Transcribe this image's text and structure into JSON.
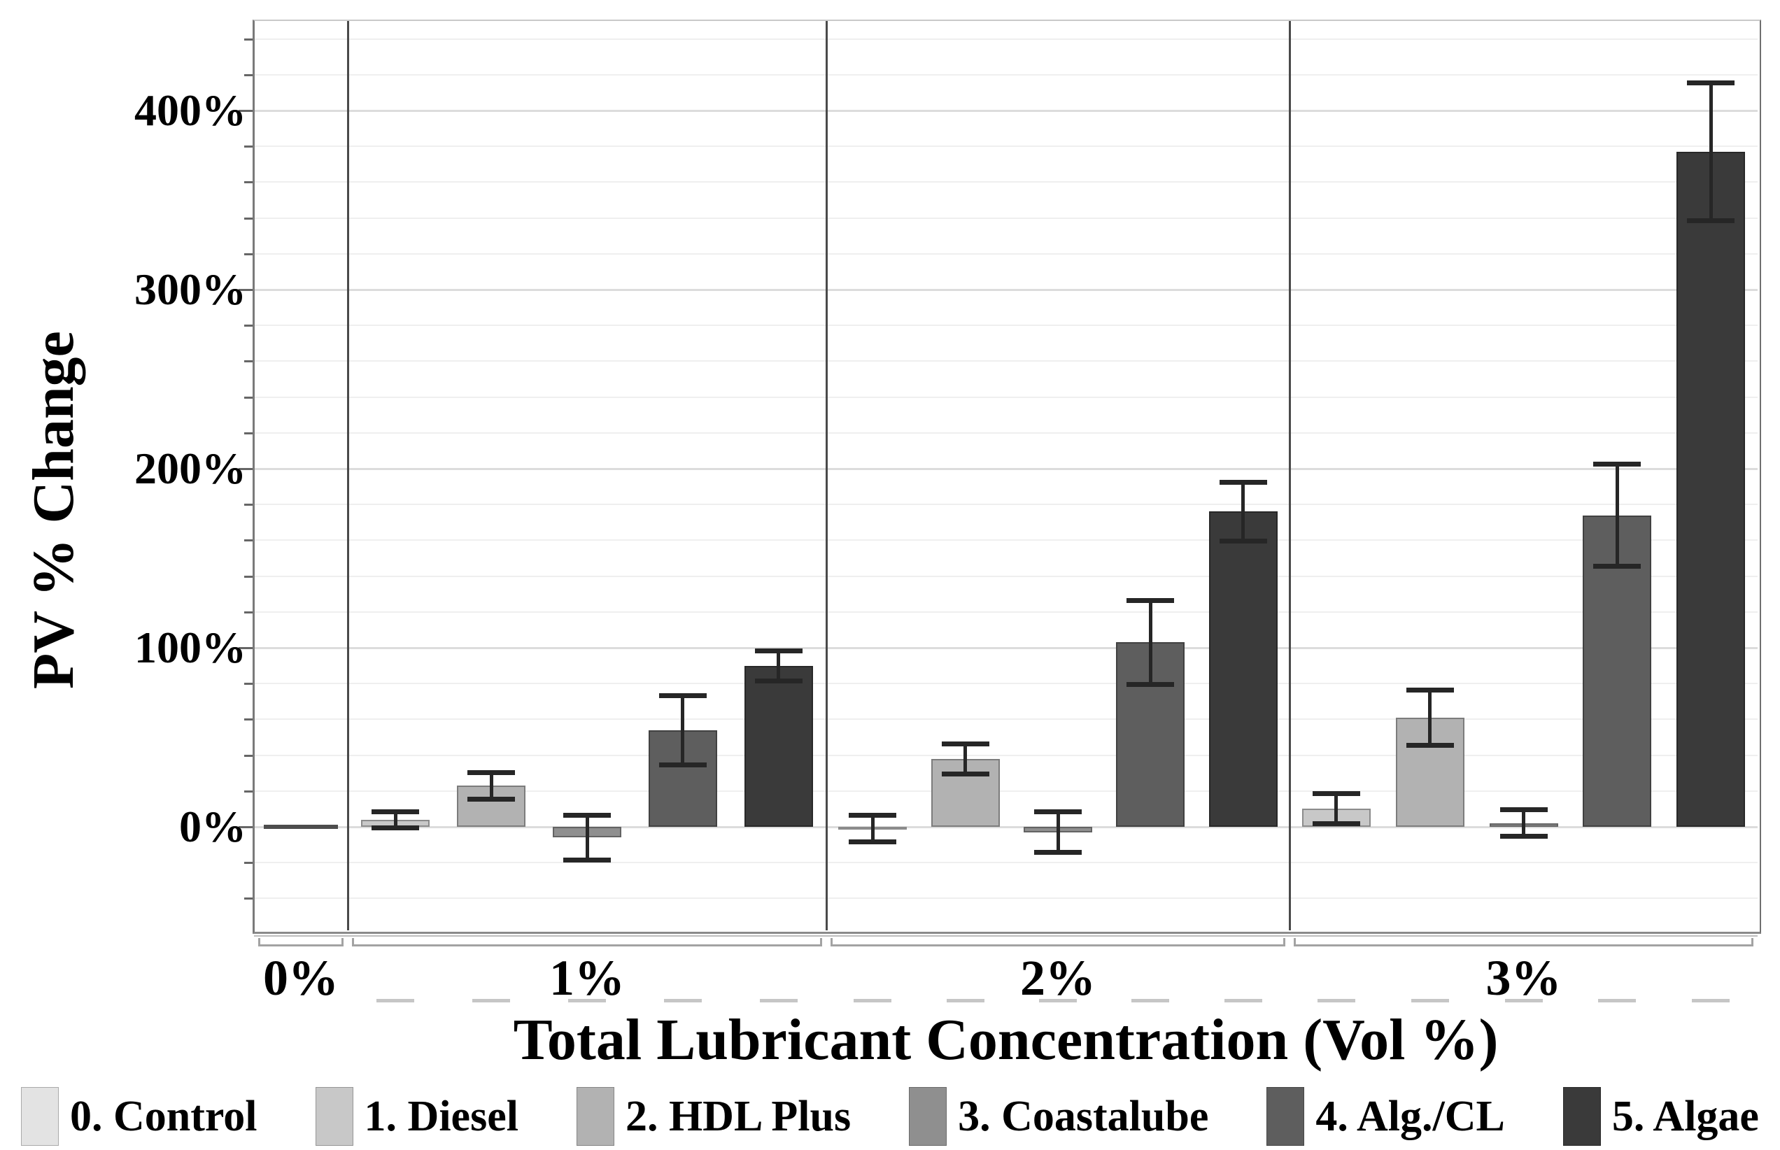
{
  "y_axis": {
    "title": "PV % Change",
    "tick_labels": [
      "400%",
      "300%",
      "200%",
      "100%",
      "0%"
    ],
    "tick_values": [
      400,
      300,
      200,
      100,
      0
    ],
    "minor_step_pct": 20,
    "range_pct": [
      -58,
      450
    ]
  },
  "x_axis": {
    "title": "Total Lubricant Concentration (Vol %)",
    "tick_labels": [
      "0%",
      "1%",
      "2%",
      "3%"
    ]
  },
  "legend": [
    {
      "label": "0. Control",
      "color": "#e3e3e3"
    },
    {
      "label": "1. Diesel",
      "color": "#c8c8c8"
    },
    {
      "label": "2. HDL Plus",
      "color": "#b2b2b2"
    },
    {
      "label": "3. Coastalube",
      "color": "#8f8f8f"
    },
    {
      "label": "4. Alg./CL",
      "color": "#5e5e5e"
    },
    {
      "label": "5. Algae",
      "color": "#3a3a3a"
    }
  ],
  "chart_data": {
    "type": "bar",
    "title": "",
    "xlabel": "Total Lubricant Concentration (Vol %)",
    "ylabel": "PV % Change",
    "categories": [
      "0%",
      "1%",
      "2%",
      "3%"
    ],
    "ylim": [
      -60,
      450
    ],
    "grid": "horizontal; minor every 20%, major every 100%",
    "legend_position": "bottom",
    "units": "percent change",
    "series": [
      {
        "name": "0. Control",
        "color": "#e3e3e3",
        "values": [
          0,
          null,
          null,
          null
        ],
        "errors": [
          1,
          null,
          null,
          null
        ]
      },
      {
        "name": "1. Diesel",
        "color": "#c8c8c8",
        "values": [
          null,
          4,
          -1,
          10
        ],
        "errors": [
          null,
          5,
          8,
          9
        ]
      },
      {
        "name": "2. HDL Plus",
        "color": "#b2b2b2",
        "values": [
          null,
          23,
          38,
          61
        ],
        "errors": [
          null,
          8,
          9,
          16
        ]
      },
      {
        "name": "3. Coastalube",
        "color": "#8f8f8f",
        "values": [
          null,
          -6,
          -3,
          2
        ],
        "errors": [
          null,
          13,
          12,
          8
        ]
      },
      {
        "name": "4. Alg./CL",
        "color": "#5e5e5e",
        "values": [
          null,
          54,
          103,
          174
        ],
        "errors": [
          null,
          20,
          24,
          29
        ]
      },
      {
        "name": "5. Algae",
        "color": "#3a3a3a",
        "values": [
          null,
          90,
          176,
          377
        ],
        "errors": [
          null,
          9,
          17,
          39
        ]
      }
    ]
  }
}
